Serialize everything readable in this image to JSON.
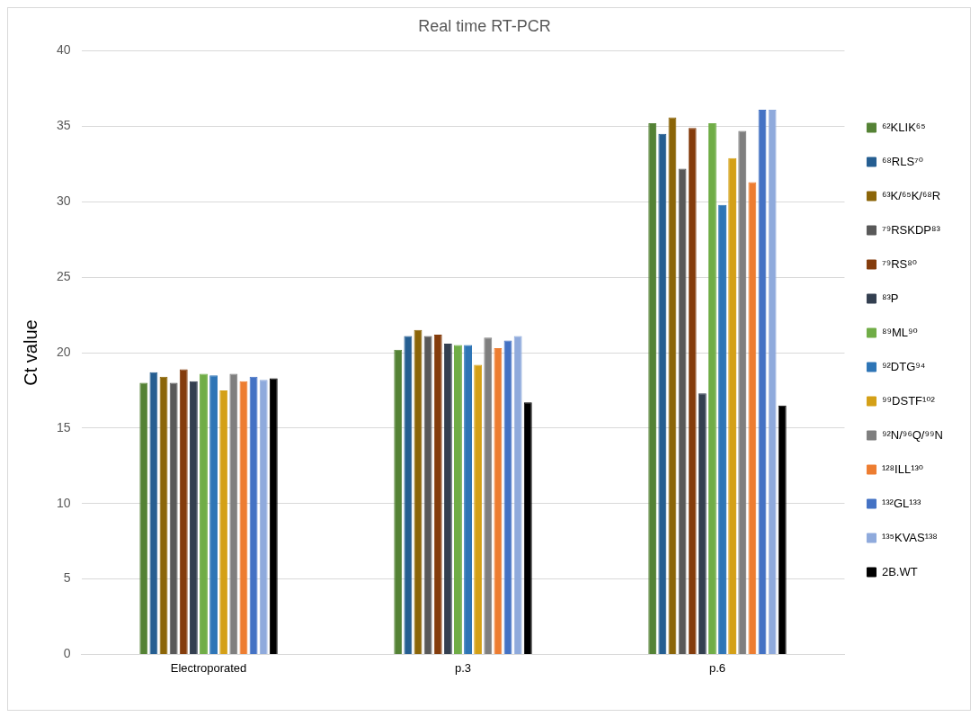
{
  "chart_data": {
    "type": "bar",
    "title": "Real time RT-PCR",
    "ylabel": "Ct value",
    "categories": [
      "Electroporated",
      "p.3",
      "p.6"
    ],
    "series": [
      {
        "name": "⁶²KLIK⁶⁵",
        "color": "#548235",
        "values": [
          18.0,
          20.2,
          35.2
        ]
      },
      {
        "name": "⁶⁸RLS⁷⁰",
        "color": "#255e91",
        "values": [
          18.7,
          21.1,
          34.5
        ]
      },
      {
        "name": "⁶³K/⁶⁵K/⁶⁸R",
        "color": "#8b6508",
        "values": [
          18.4,
          21.5,
          35.6
        ]
      },
      {
        "name": "⁷⁹RSKDP⁸³",
        "color": "#595959",
        "values": [
          18.0,
          21.1,
          32.2
        ]
      },
      {
        "name": "⁷⁹RS⁸⁰",
        "color": "#843c0c",
        "values": [
          18.9,
          21.2,
          34.9
        ]
      },
      {
        "name": "⁸³P",
        "color": "#333f50",
        "values": [
          18.1,
          20.6,
          17.3
        ]
      },
      {
        "name": "⁸⁹ML⁹⁰",
        "color": "#70ad47",
        "values": [
          18.6,
          20.5,
          35.2
        ]
      },
      {
        "name": "⁹²DTG⁹⁴",
        "color": "#2e75b6",
        "values": [
          18.5,
          20.5,
          29.8
        ]
      },
      {
        "name": "⁹⁹DSTF¹⁰²",
        "color": "#d4a017",
        "values": [
          17.5,
          19.2,
          32.9
        ]
      },
      {
        "name": "⁹²N/⁹⁶Q/⁹⁹N",
        "color": "#7f7f7f",
        "values": [
          18.6,
          21.0,
          34.7
        ]
      },
      {
        "name": "¹²⁸ILL¹³⁰",
        "color": "#ed7d31",
        "values": [
          18.1,
          20.3,
          31.3
        ]
      },
      {
        "name": "¹³²GL¹³³",
        "color": "#4472c4",
        "values": [
          18.4,
          20.8,
          36.1
        ]
      },
      {
        "name": "¹³⁵KVAS¹³⁸",
        "color": "#8faadc",
        "values": [
          18.2,
          21.1,
          36.1
        ]
      },
      {
        "name": "2B.WT",
        "color": "#000000",
        "values": [
          18.3,
          16.7,
          16.5
        ]
      }
    ],
    "ylim": [
      0,
      40
    ],
    "yticks": [
      0,
      5,
      10,
      15,
      20,
      25,
      30,
      35,
      40
    ],
    "grid": "y",
    "legend": "right"
  }
}
